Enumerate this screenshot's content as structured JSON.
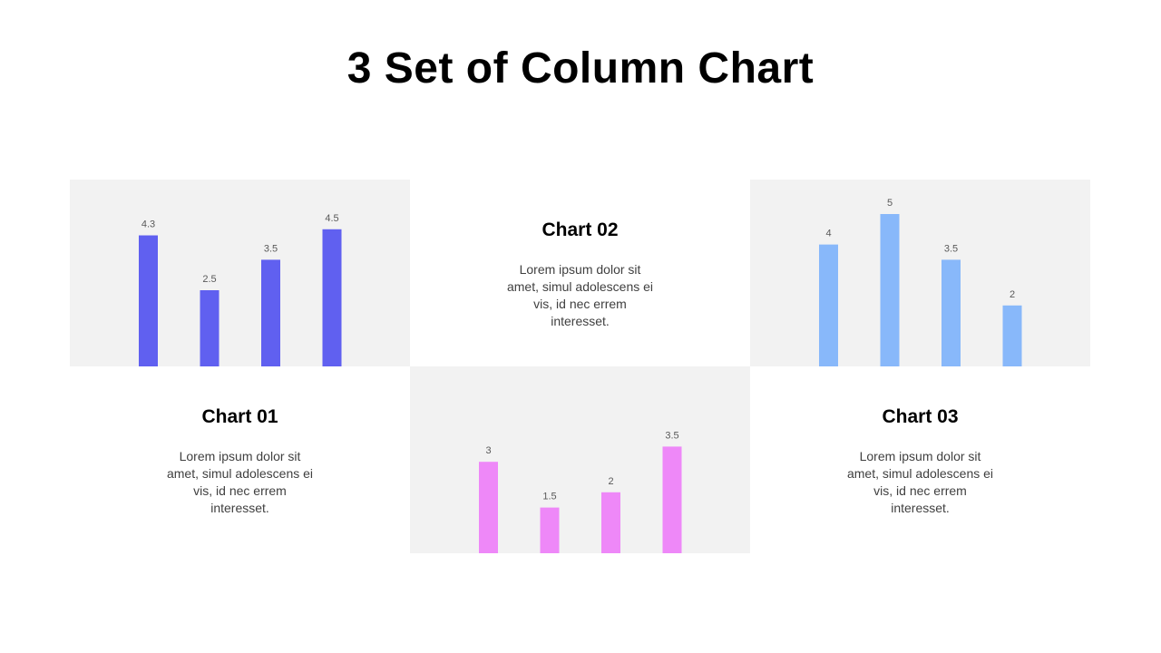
{
  "page": {
    "title": "3 Set of Column Chart"
  },
  "chart_data": [
    {
      "type": "bar",
      "title": "Chart 01",
      "description": "Lorem ipsum dolor sit amet, simul adolescens ei vis, id nec errem interesset.",
      "values": [
        4.3,
        2.5,
        3.5,
        4.5
      ],
      "labels": [
        "4.3",
        "2.5",
        "3.5",
        "4.5"
      ],
      "color": "#6060f0",
      "ylim": [
        0,
        5
      ]
    },
    {
      "type": "bar",
      "title": "Chart 02",
      "description": "Lorem ipsum dolor sit amet, simul adolescens ei vis, id nec errem interesset.",
      "values": [
        3,
        1.5,
        2,
        3.5
      ],
      "labels": [
        "3",
        "1.5",
        "2",
        "3.5"
      ],
      "color": "#ee88f8",
      "ylim": [
        0,
        5
      ]
    },
    {
      "type": "bar",
      "title": "Chart 03",
      "description": "Lorem ipsum dolor sit amet, simul adolescens ei vis, id nec errem interesset.",
      "values": [
        4,
        5,
        3.5,
        2
      ],
      "labels": [
        "4",
        "5",
        "3.5",
        "2"
      ],
      "color": "#88b8fa",
      "ylim": [
        0,
        5
      ]
    }
  ]
}
